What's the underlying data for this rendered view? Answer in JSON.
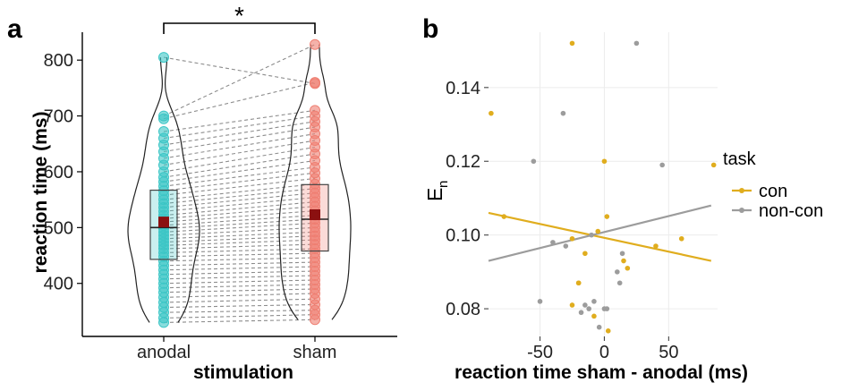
{
  "chart_data": [
    {
      "panel_label": "a",
      "type": "violin-box-dot",
      "xlabel": "stimulation",
      "ylabel": "reaction time (ms)",
      "ylim": [
        305,
        850
      ],
      "yticks": [
        400,
        500,
        600,
        700,
        800
      ],
      "categories": [
        "anodal",
        "sham"
      ],
      "significance_label": "*",
      "colors": {
        "anodal": "#3cc6c6",
        "sham": "#ef7f72",
        "mean": "#8b1010",
        "pair_line": "#8c8c8c"
      },
      "box": {
        "anodal": {
          "q1": 443,
          "median": 500,
          "q3": 567,
          "mean": 510
        },
        "sham": {
          "q1": 458,
          "median": 515,
          "q3": 577,
          "mean": 523
        }
      },
      "paired_values": {
        "anodal": [
          805,
          700,
          695,
          672,
          660,
          648,
          636,
          624,
          612,
          600,
          590,
          582,
          574,
          566,
          558,
          550,
          543,
          536,
          529,
          522,
          516,
          510,
          504,
          498,
          492,
          486,
          480,
          474,
          468,
          462,
          455,
          448,
          440,
          432,
          424,
          416,
          408,
          400,
          392,
          384,
          375,
          366,
          357,
          348,
          338,
          330
        ],
        "sham": [
          758,
          828,
          760,
          710,
          700,
          690,
          680,
          668,
          656,
          644,
          632,
          620,
          608,
          598,
          588,
          578,
          570,
          562,
          554,
          546,
          538,
          530,
          522,
          515,
          508,
          500,
          492,
          485,
          478,
          470,
          462,
          454,
          446,
          438,
          430,
          422,
          414,
          406,
          398,
          390,
          382,
          372,
          362,
          352,
          344,
          335
        ]
      }
    },
    {
      "panel_label": "b",
      "type": "scatter",
      "xlabel": "reaction time sham - anodal (ms)",
      "ylabel_main": "E",
      "ylabel_sub": "n",
      "xlim": [
        -90,
        88
      ],
      "ylim": [
        0.0725,
        0.155
      ],
      "xticks": [
        -50,
        0,
        50
      ],
      "yticks": [
        0.08,
        0.1,
        0.12,
        0.14
      ],
      "legend_title": "task",
      "legend_position": "right",
      "series": [
        {
          "name": "con",
          "color": "#e0ad1e",
          "x": [
            -88,
            -78,
            -25,
            -25,
            -25,
            -20,
            -20,
            -15,
            -8,
            -5,
            0,
            2,
            3,
            15,
            18,
            40,
            60,
            85
          ],
          "y": [
            0.133,
            0.105,
            0.152,
            0.099,
            0.081,
            0.087,
            0.087,
            0.095,
            0.078,
            0.101,
            0.12,
            0.105,
            0.074,
            0.093,
            0.091,
            0.097,
            0.099,
            0.119
          ],
          "fit": {
            "x0": -90,
            "y0": 0.106,
            "x1": 83,
            "y1": 0.093
          }
        },
        {
          "name": "non-con",
          "color": "#9c9c9c",
          "x": [
            -55,
            -50,
            -40,
            -32,
            -30,
            -18,
            -15,
            -12,
            -10,
            -8,
            -4,
            0,
            2,
            10,
            12,
            14,
            25,
            45
          ],
          "y": [
            0.12,
            0.082,
            0.098,
            0.133,
            0.097,
            0.079,
            0.081,
            0.08,
            0.1,
            0.082,
            0.075,
            0.08,
            0.08,
            0.09,
            0.087,
            0.095,
            0.152,
            0.119
          ],
          "fit": {
            "x0": -90,
            "y0": 0.093,
            "x1": 83,
            "y1": 0.108
          }
        }
      ]
    }
  ]
}
